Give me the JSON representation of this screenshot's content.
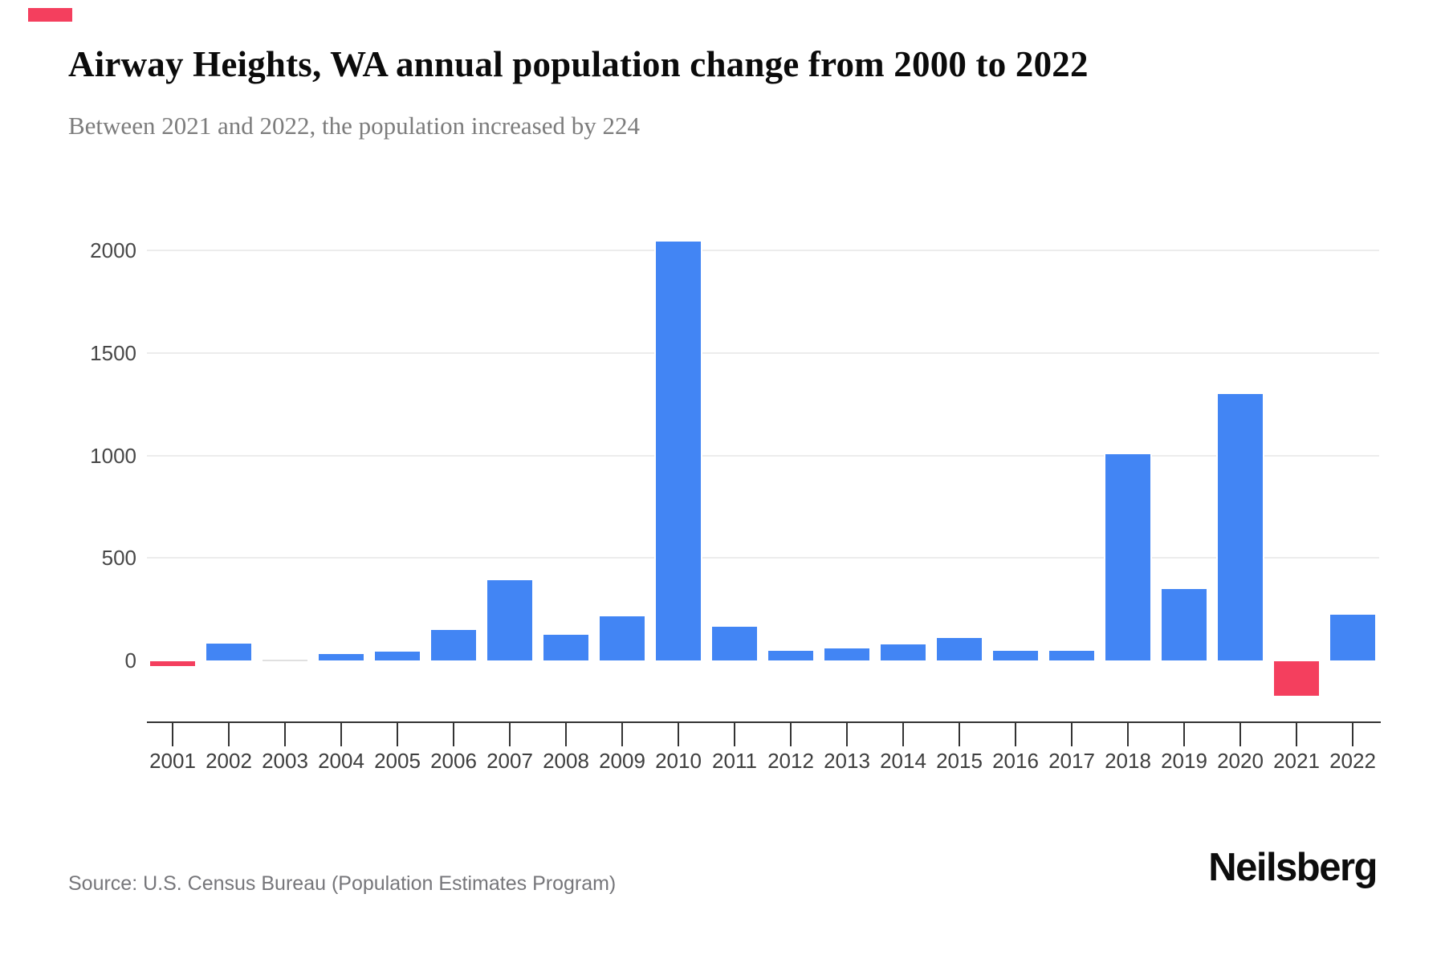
{
  "header": {
    "title": "Airway Heights, WA annual population change from 2000 to 2022",
    "subtitle": "Between 2021 and 2022, the population increased by 224"
  },
  "footer": {
    "source": "Source: U.S. Census Bureau (Population Estimates Program)",
    "logo": "Neilsberg"
  },
  "top_left_marker": {
    "color": "#f43f5e"
  },
  "chart_data": {
    "type": "bar",
    "title": "Airway Heights, WA annual population change from 2000 to 2022",
    "subtitle": "Between 2021 and 2022, the population increased by 224",
    "xlabel": "",
    "ylabel": "",
    "categories": [
      "2001",
      "2002",
      "2003",
      "2004",
      "2005",
      "2006",
      "2007",
      "2008",
      "2009",
      "2010",
      "2011",
      "2012",
      "2013",
      "2014",
      "2015",
      "2016",
      "2017",
      "2018",
      "2019",
      "2020",
      "2021",
      "2022"
    ],
    "values": [
      -25,
      81,
      0,
      31,
      43,
      150,
      391,
      124,
      217,
      2043,
      166,
      48,
      57,
      77,
      110,
      48,
      48,
      1005,
      350,
      1300,
      -170,
      224
    ],
    "yticks": [
      0,
      500,
      1000,
      1500,
      2000
    ],
    "ylim": [
      -300,
      2200
    ],
    "grid": true,
    "legend": false,
    "highlight_note": "negative years shown in red",
    "colors": {
      "positive": "#4285f4",
      "negative": "#f43f5e",
      "zero_bar": "#e0e0e0",
      "gridline": "#ececec",
      "axis": "#333333",
      "y_label": "#474747",
      "x_label": "#3e3e3e"
    }
  }
}
